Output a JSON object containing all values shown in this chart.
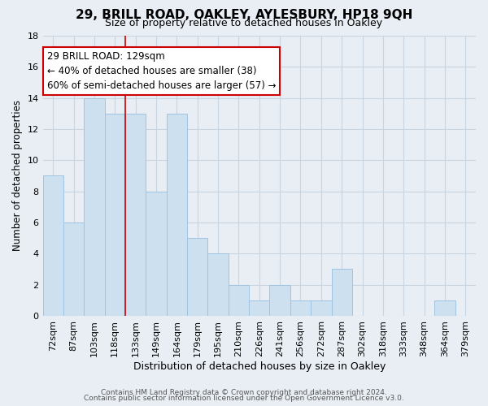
{
  "title": "29, BRILL ROAD, OAKLEY, AYLESBURY, HP18 9QH",
  "subtitle": "Size of property relative to detached houses in Oakley",
  "xlabel": "Distribution of detached houses by size in Oakley",
  "ylabel": "Number of detached properties",
  "footer_lines": [
    "Contains HM Land Registry data © Crown copyright and database right 2024.",
    "Contains public sector information licensed under the Open Government Licence v3.0."
  ],
  "bar_labels": [
    "72sqm",
    "87sqm",
    "103sqm",
    "118sqm",
    "133sqm",
    "149sqm",
    "164sqm",
    "179sqm",
    "195sqm",
    "210sqm",
    "226sqm",
    "241sqm",
    "256sqm",
    "272sqm",
    "287sqm",
    "302sqm",
    "318sqm",
    "333sqm",
    "348sqm",
    "364sqm",
    "379sqm"
  ],
  "bar_values": [
    9,
    6,
    14,
    13,
    13,
    8,
    13,
    5,
    4,
    2,
    1,
    2,
    1,
    1,
    3,
    0,
    0,
    0,
    0,
    1,
    0
  ],
  "bar_color": "#cce0f0",
  "bar_edge_color": "#a0c4e0",
  "highlight_line_color": "#cc0000",
  "annotation_line1": "29 BRILL ROAD: 129sqm",
  "annotation_line2": "← 40% of detached houses are smaller (38)",
  "annotation_line3": "60% of semi-detached houses are larger (57) →",
  "annotation_box_color": "#ffffff",
  "annotation_box_edge": "#cc0000",
  "ylim": [
    0,
    18
  ],
  "yticks": [
    0,
    2,
    4,
    6,
    8,
    10,
    12,
    14,
    16,
    18
  ],
  "grid_color": "#c8d4e0",
  "bg_color": "#e8eef4",
  "plot_bg_color": "#e8eef4"
}
